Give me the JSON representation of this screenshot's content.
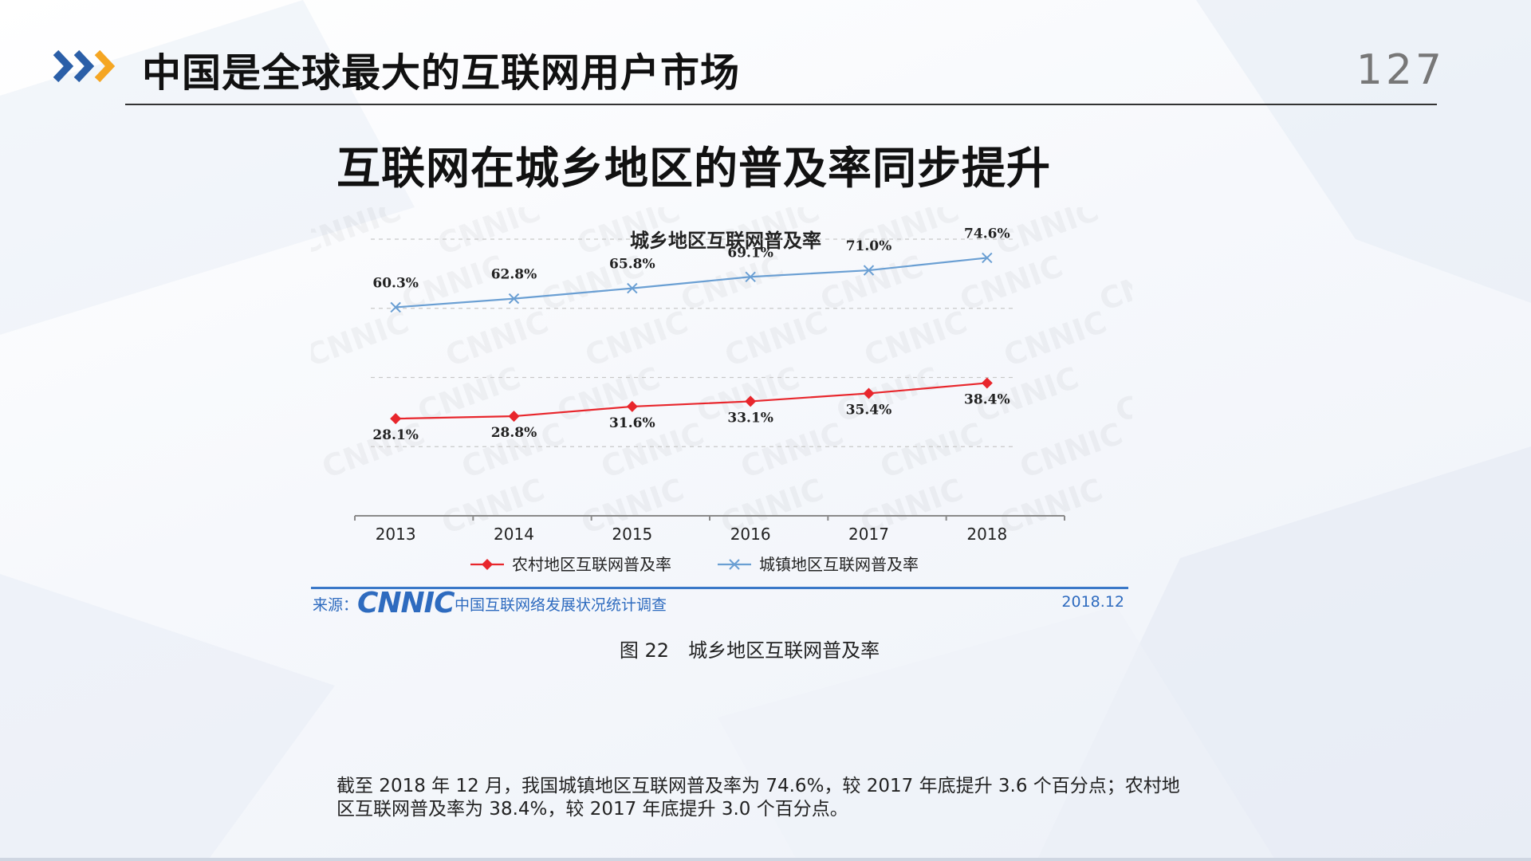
{
  "header": {
    "title": "中国是全球最大的互联网用户市场",
    "page_number": "127"
  },
  "slide": {
    "heading": "互联网在城乡地区的普及率同步提升"
  },
  "source": {
    "prefix": "来源：",
    "logo": "CNNIC",
    "survey": "中国互联网络发展状况统计调查",
    "date": "2018.12"
  },
  "caption": "图 22　城乡地区互联网普及率",
  "footnote": {
    "line1": "截至 2018 年 12 月，我国城镇地区互联网普及率为 74.6%，较 2017 年底提升 3.6 个百分点；农村地",
    "line2": "区互联网普及率为 38.4%，较 2017 年底提升 3.0 个百分点。"
  },
  "colors": {
    "rural": "#e8262c",
    "urban": "#6a9fd3",
    "accent": "#2e6bbf",
    "arrow_dark": "#2b5fa8",
    "arrow_orange": "#f5a623"
  },
  "chart_data": {
    "type": "line",
    "title": "城乡地区互联网普及率",
    "xlabel": "",
    "ylabel": "",
    "categories": [
      "2013",
      "2014",
      "2015",
      "2016",
      "2017",
      "2018"
    ],
    "ylim": [
      0,
      80
    ],
    "grid": true,
    "legend_position": "bottom",
    "series": [
      {
        "name": "农村地区互联网普及率",
        "marker": "diamond",
        "color": "#e8262c",
        "values": [
          28.1,
          28.8,
          31.6,
          33.1,
          35.4,
          38.4
        ],
        "labels": [
          "28.1%",
          "28.8%",
          "31.6%",
          "33.1%",
          "35.4%",
          "38.4%"
        ]
      },
      {
        "name": "城镇地区互联网普及率",
        "marker": "x",
        "color": "#6a9fd3",
        "values": [
          60.3,
          62.8,
          65.8,
          69.1,
          71.0,
          74.6
        ],
        "labels": [
          "60.3%",
          "62.8%",
          "65.8%",
          "69.1%",
          "71.0%",
          "74.6%"
        ]
      }
    ]
  }
}
